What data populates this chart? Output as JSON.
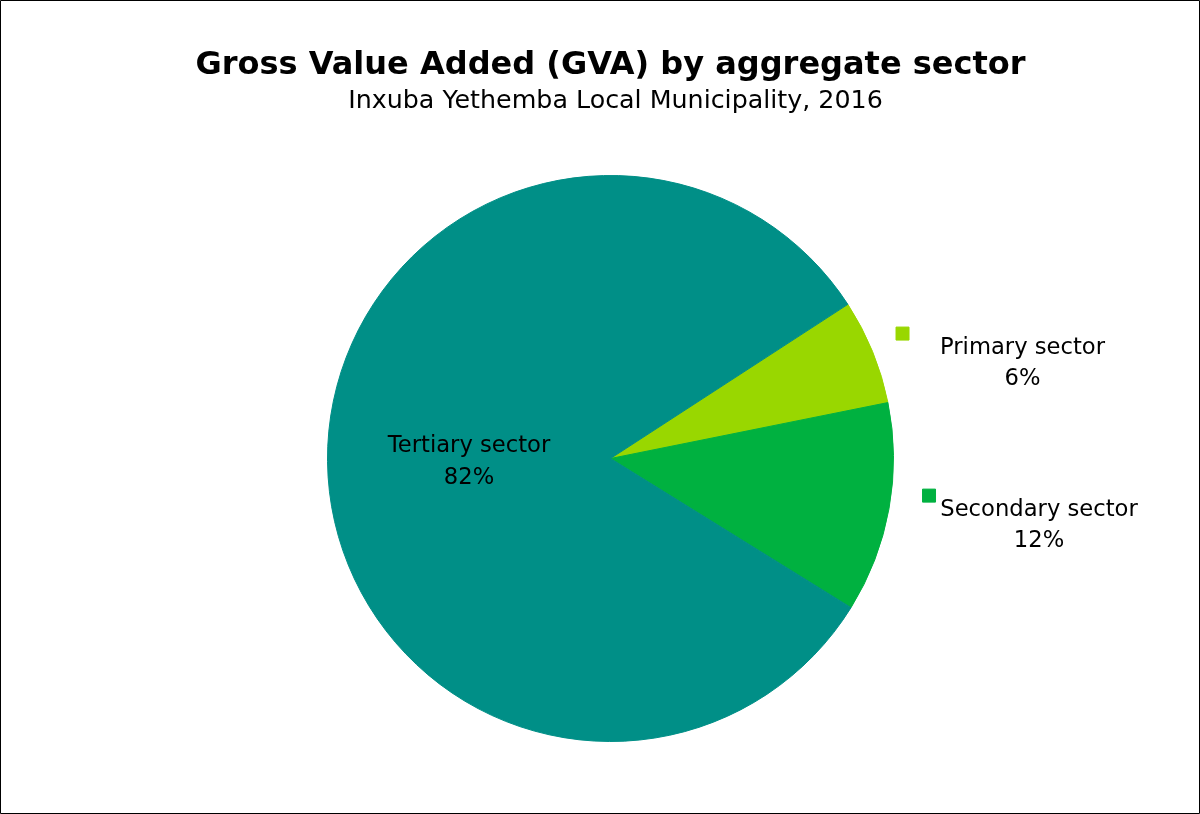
{
  "chart_data": {
    "type": "pie",
    "title": "Gross Value Added (GVA) by aggregate sector",
    "subtitle": "Inxuba Yethemba Local Municipality, 2016",
    "categories": [
      "Primary sector",
      "Secondary sector",
      "Tertiary sector"
    ],
    "values": [
      6,
      12,
      82
    ],
    "colors": [
      "#99d700",
      "#00b140",
      "#008f87"
    ],
    "value_labels": [
      "6%",
      "12%",
      "82%"
    ],
    "legend": "right"
  }
}
